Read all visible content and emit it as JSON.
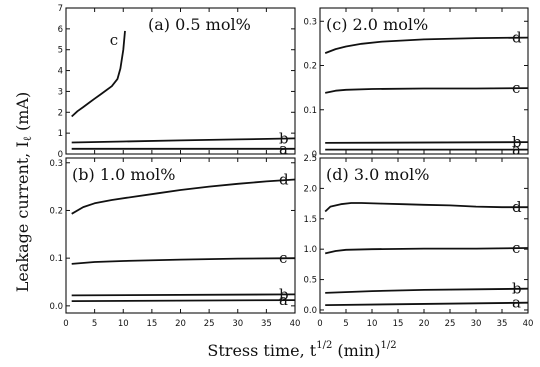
{
  "figure": {
    "ylabel": "Leakage current, I",
    "ylabel_sub": "ℓ",
    "ylabel_unit": " (mA)",
    "xlabel": "Stress time, t",
    "xlabel_sup": "1/2",
    "xlabel_unit": " (min)",
    "xlabel_unit_sup": "1/2"
  },
  "chart_data": [
    {
      "type": "line",
      "title": "(a)  0.5  mol%",
      "xlim": [
        0,
        40
      ],
      "ylim": [
        0,
        7
      ],
      "xticks": [
        0,
        5,
        10,
        15,
        20,
        25,
        30,
        35,
        40
      ],
      "yticks": [
        0,
        1,
        2,
        3,
        4,
        5,
        6,
        7
      ],
      "ytick_labels": [
        "0",
        "1",
        "2",
        "3",
        "4",
        "5",
        "6",
        "7"
      ],
      "show_xtick_labels": false,
      "series": [
        {
          "name": "a",
          "x": [
            1,
            40
          ],
          "y": [
            0.25,
            0.25
          ]
        },
        {
          "name": "b",
          "x": [
            1,
            10,
            20,
            30,
            40
          ],
          "y": [
            0.55,
            0.6,
            0.65,
            0.7,
            0.75
          ]
        },
        {
          "name": "c",
          "x": [
            1,
            2,
            3,
            4,
            5,
            6,
            7,
            8,
            9,
            9.5,
            10,
            10.3
          ],
          "y": [
            1.8,
            2.05,
            2.25,
            2.45,
            2.65,
            2.85,
            3.05,
            3.25,
            3.6,
            4.1,
            5.0,
            5.9
          ]
        }
      ]
    },
    {
      "type": "line",
      "title": "(c)  2.0  mol%",
      "xlim": [
        0,
        40
      ],
      "ylim": [
        0,
        0.33
      ],
      "xticks": [
        0,
        5,
        10,
        15,
        20,
        25,
        30,
        35,
        40
      ],
      "yticks": [
        0,
        0.1,
        0.2,
        0.3
      ],
      "ytick_labels": [
        "0",
        "0.1",
        "0.2",
        "0.3"
      ],
      "show_xtick_labels": false,
      "series": [
        {
          "name": "a",
          "x": [
            1,
            40
          ],
          "y": [
            0.01,
            0.01
          ]
        },
        {
          "name": "b",
          "x": [
            1,
            40
          ],
          "y": [
            0.025,
            0.027
          ]
        },
        {
          "name": "c",
          "x": [
            1,
            3,
            5,
            10,
            20,
            30,
            40
          ],
          "y": [
            0.138,
            0.143,
            0.145,
            0.147,
            0.148,
            0.148,
            0.149
          ]
        },
        {
          "name": "d",
          "x": [
            1,
            3,
            5,
            8,
            12,
            20,
            30,
            40
          ],
          "y": [
            0.228,
            0.237,
            0.243,
            0.249,
            0.254,
            0.259,
            0.262,
            0.263
          ]
        }
      ]
    },
    {
      "type": "line",
      "title": "(b)  1.0  mol%",
      "xlim": [
        0,
        40
      ],
      "ylim": [
        -0.015,
        0.31
      ],
      "xticks": [
        0,
        5,
        10,
        15,
        20,
        25,
        30,
        35,
        40
      ],
      "yticks": [
        0,
        0.1,
        0.2,
        0.3
      ],
      "ytick_labels": [
        "0.0",
        "0.1",
        "0.2",
        "0.3"
      ],
      "show_xtick_labels": true,
      "series": [
        {
          "name": "a",
          "x": [
            1,
            40
          ],
          "y": [
            0.01,
            0.012
          ]
        },
        {
          "name": "b",
          "x": [
            1,
            40
          ],
          "y": [
            0.022,
            0.024
          ]
        },
        {
          "name": "c",
          "x": [
            1,
            5,
            10,
            20,
            30,
            40
          ],
          "y": [
            0.088,
            0.092,
            0.094,
            0.097,
            0.099,
            0.1
          ]
        },
        {
          "name": "d",
          "x": [
            1,
            3,
            5,
            8,
            12,
            16,
            20,
            25,
            30,
            35,
            40
          ],
          "y": [
            0.193,
            0.207,
            0.215,
            0.222,
            0.229,
            0.236,
            0.243,
            0.25,
            0.256,
            0.261,
            0.265
          ]
        }
      ]
    },
    {
      "type": "line",
      "title": "(d)  3.0  mol%",
      "xlim": [
        0,
        40
      ],
      "ylim": [
        -0.05,
        2.5
      ],
      "xticks": [
        0,
        5,
        10,
        15,
        20,
        25,
        30,
        35,
        40
      ],
      "yticks": [
        0,
        0.5,
        1.0,
        1.5,
        2.0,
        2.5
      ],
      "ytick_labels": [
        "0.0",
        "0.5",
        "1.0",
        "1.5",
        "2.0",
        "2.5"
      ],
      "show_xtick_labels": true,
      "series": [
        {
          "name": "a",
          "x": [
            1,
            40
          ],
          "y": [
            0.08,
            0.12
          ]
        },
        {
          "name": "b",
          "x": [
            1,
            10,
            20,
            30,
            40
          ],
          "y": [
            0.28,
            0.31,
            0.33,
            0.34,
            0.35
          ]
        },
        {
          "name": "c",
          "x": [
            1,
            3,
            5,
            10,
            20,
            30,
            40
          ],
          "y": [
            0.93,
            0.97,
            0.99,
            1.0,
            1.01,
            1.01,
            1.02
          ]
        },
        {
          "name": "d",
          "x": [
            1,
            2,
            4,
            6,
            8,
            12,
            16,
            20,
            25,
            30,
            35,
            40
          ],
          "y": [
            1.62,
            1.7,
            1.74,
            1.76,
            1.76,
            1.75,
            1.74,
            1.73,
            1.72,
            1.7,
            1.69,
            1.69
          ]
        }
      ]
    }
  ]
}
